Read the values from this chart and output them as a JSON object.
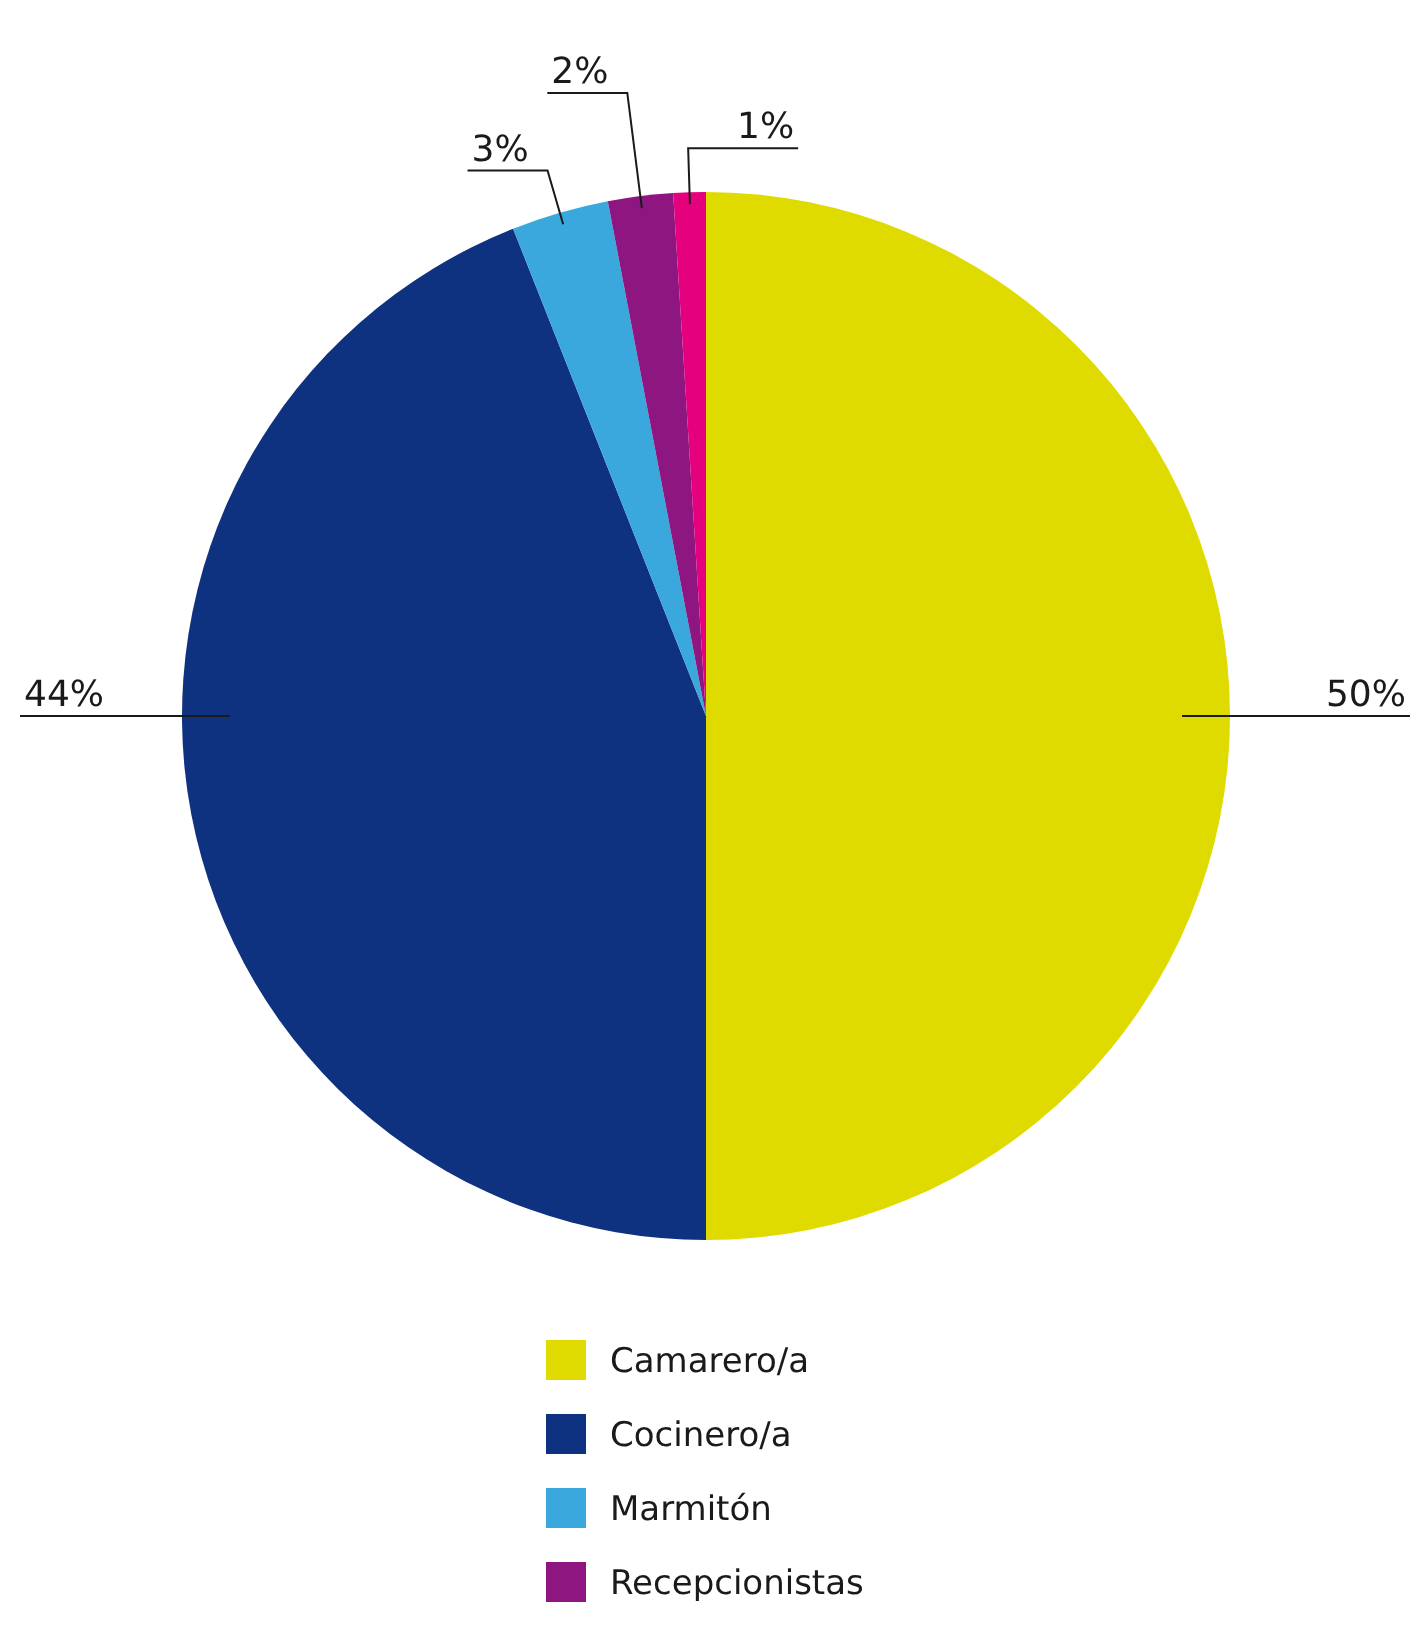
{
  "chart_data": {
    "type": "pie",
    "categories": [
      "Camarero/a",
      "Cocinero/a",
      "Marmitón",
      "Recepcionistas",
      null
    ],
    "values": [
      50,
      44,
      3,
      2,
      1
    ],
    "colors": [
      "#dfdb00",
      "#0e3180",
      "#3aa8dc",
      "#8e1680",
      "#e5007e"
    ],
    "value_labels": [
      "50%",
      "44%",
      "3%",
      "2%",
      "1%"
    ],
    "legend": "bottom"
  }
}
